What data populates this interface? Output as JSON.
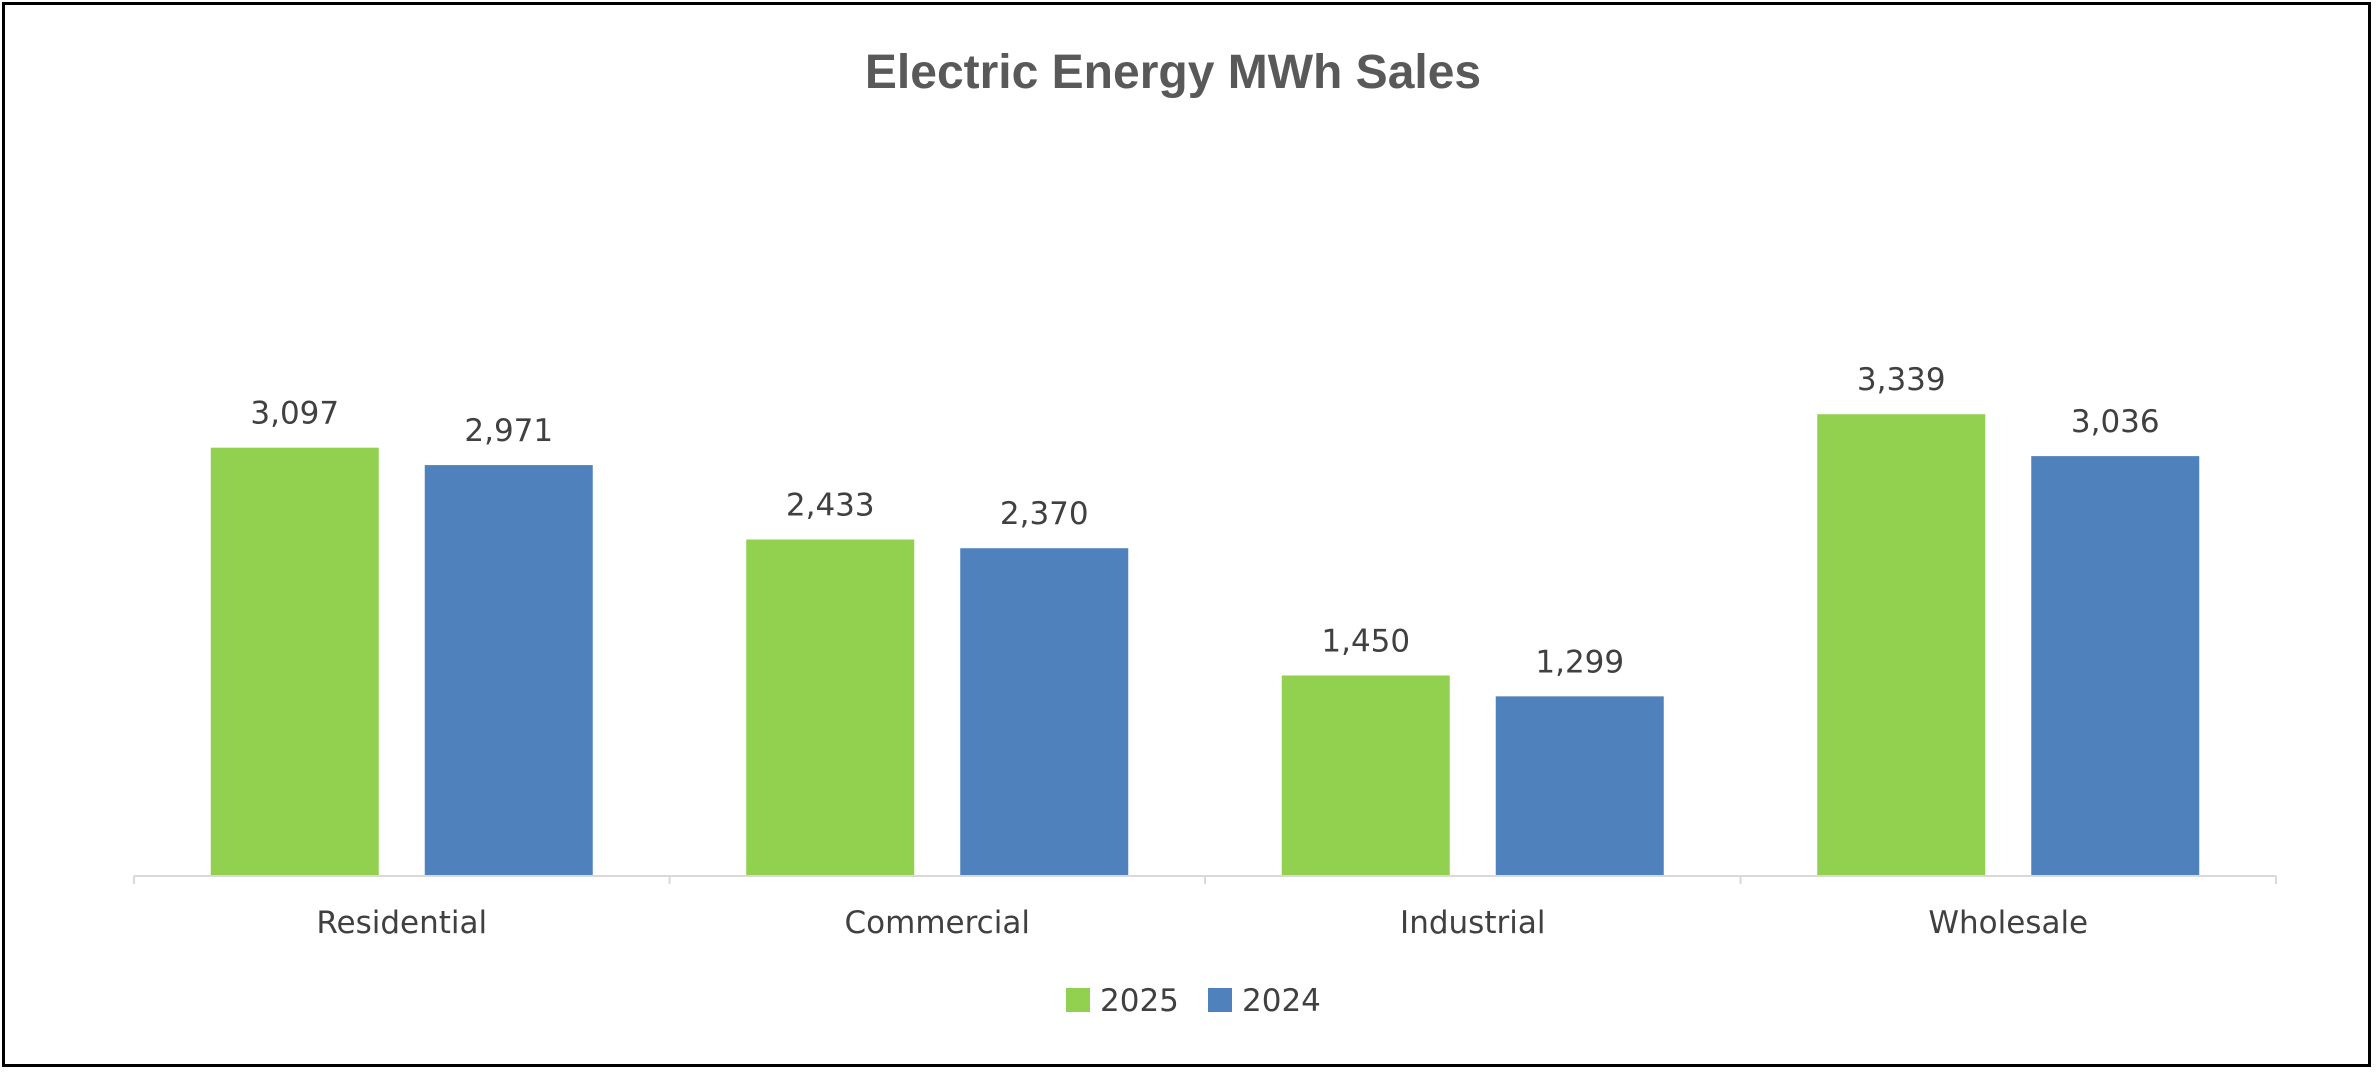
{
  "chart_data": {
    "type": "bar",
    "title": "Electric Energy MWh Sales",
    "categories": [
      "Residential",
      "Commercial",
      "Industrial",
      "Wholesale"
    ],
    "series": [
      {
        "name": "2025",
        "color": "#92D050",
        "values": [
          3097,
          2433,
          1450,
          3339
        ],
        "labels": [
          "3,097",
          "2,433",
          "1,450",
          "3,339"
        ]
      },
      {
        "name": "2024",
        "color": "#4F81BD",
        "values": [
          2971,
          2370,
          1299,
          3036
        ],
        "labels": [
          "2,971",
          "2,370",
          "1,299",
          "3,036"
        ]
      }
    ],
    "ylim": [
      0,
      3500
    ],
    "grid": false,
    "data_labels": true,
    "legend_position": "bottom"
  }
}
